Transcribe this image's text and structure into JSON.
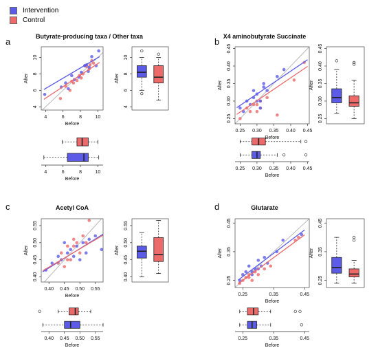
{
  "legend": {
    "items": [
      {
        "label": "Intervention",
        "color": "#5b5be8"
      },
      {
        "label": "Control",
        "color": "#ec6a6a"
      }
    ]
  },
  "colors": {
    "intervention": "#5b5be8",
    "control": "#ec6a6a",
    "identity_line": "#b8b8b8"
  },
  "chart_data": [
    {
      "panel": "a",
      "type": "scatter",
      "title": "Butyrate-producing taxa / Other taxa",
      "xlabel": "Before",
      "ylabel": "After",
      "boxplot_xlabel": "Before",
      "xlim": [
        3.5,
        10.6
      ],
      "ylim": [
        3.6,
        11.3
      ],
      "xticks": [
        "4",
        "6",
        "8",
        "10"
      ],
      "yticks": [
        "4",
        "6",
        "8",
        "10"
      ],
      "xtick_values": [
        4,
        6,
        8,
        10
      ],
      "ytick_values": [
        4,
        6,
        8,
        10
      ],
      "identity_line": true,
      "series": [
        {
          "name": "Intervention",
          "x": [
            3.9,
            5.8,
            6.6,
            7.3,
            7.8,
            8.1,
            8.5,
            8.9,
            9.3,
            9.8,
            10.1,
            8.7,
            9.0,
            6.3,
            7.0
          ],
          "y": [
            5.5,
            6.4,
            6.2,
            7.3,
            7.6,
            8.2,
            9.0,
            8.3,
            10.1,
            9.0,
            10.8,
            9.1,
            8.8,
            6.9,
            7.8
          ],
          "fit": [
            [
              3.8,
              6.1
            ],
            [
              10.2,
              10.1
            ]
          ]
        },
        {
          "name": "Control",
          "x": [
            5.7,
            6.3,
            6.8,
            7.2,
            7.6,
            7.9,
            8.3,
            8.7,
            9.0,
            9.3,
            9.5,
            8.5,
            7.0,
            8.1,
            9.1
          ],
          "y": [
            5.0,
            6.5,
            6.0,
            6.9,
            7.2,
            7.8,
            8.0,
            8.9,
            8.6,
            9.6,
            9.3,
            9.0,
            7.1,
            7.5,
            9.1
          ],
          "fit": [
            [
              3.8,
              4.9
            ],
            [
              10.2,
              9.4
            ]
          ]
        }
      ],
      "boxplot_after": {
        "ylim": [
          3.6,
          11.3
        ],
        "yticks": [
          "4",
          "6",
          "8",
          "10"
        ],
        "ytick_values": [
          4,
          6,
          8,
          10
        ],
        "Intervention": {
          "wlo": 6.0,
          "q1": 7.6,
          "median": 8.2,
          "q3": 9.0,
          "whi": 10.0,
          "out": [
            5.6,
            10.8
          ]
        },
        "Control": {
          "wlo": 4.8,
          "q1": 6.9,
          "median": 7.6,
          "q3": 9.0,
          "whi": 10.0,
          "out": [
            10.4
          ]
        }
      },
      "boxplot_before": {
        "Control": {
          "wlo": 5.9,
          "q1": 7.6,
          "median": 8.2,
          "q3": 8.9,
          "whi": 10.0,
          "out": []
        },
        "Intervention": {
          "wlo": 3.8,
          "q1": 6.5,
          "median": 8.4,
          "q3": 8.9,
          "whi": 10.1,
          "out": []
        }
      }
    },
    {
      "panel": "b",
      "type": "scatter",
      "title": "X4 aminobutyrate Succinate",
      "xlabel": "Before",
      "ylabel": "After",
      "boxplot_xlabel": "Before",
      "xlim": [
        0.235,
        0.455
      ],
      "ylim": [
        0.235,
        0.455
      ],
      "xticks": [
        "0.25",
        "0.30",
        "0.35",
        "0.40",
        "0.45"
      ],
      "yticks": [
        "0.25",
        "0.30",
        "0.35",
        "0.40",
        "0.45"
      ],
      "xtick_values": [
        0.25,
        0.3,
        0.35,
        0.4,
        0.45
      ],
      "ytick_values": [
        0.25,
        0.3,
        0.35,
        0.4,
        0.45
      ],
      "identity_line": true,
      "series": [
        {
          "name": "Intervention",
          "x": [
            0.25,
            0.26,
            0.27,
            0.28,
            0.29,
            0.3,
            0.31,
            0.32,
            0.33,
            0.36,
            0.38,
            0.3,
            0.31,
            0.29,
            0.32
          ],
          "y": [
            0.28,
            0.27,
            0.3,
            0.29,
            0.31,
            0.32,
            0.3,
            0.35,
            0.33,
            0.37,
            0.39,
            0.3,
            0.28,
            0.33,
            0.34
          ],
          "fit": [
            [
              0.24,
              0.281
            ],
            [
              0.45,
              0.418
            ]
          ]
        },
        {
          "name": "Control",
          "x": [
            0.25,
            0.27,
            0.28,
            0.29,
            0.3,
            0.31,
            0.33,
            0.36,
            0.41,
            0.44,
            0.3,
            0.31
          ],
          "y": [
            0.25,
            0.28,
            0.27,
            0.29,
            0.29,
            0.3,
            0.31,
            0.26,
            0.36,
            0.41,
            0.27,
            0.28
          ],
          "fit": [
            [
              0.24,
              0.262
            ],
            [
              0.45,
              0.399
            ]
          ]
        }
      ],
      "boxplot_after": {
        "ylim": [
          0.235,
          0.455
        ],
        "yticks": [
          "0.25",
          "0.30",
          "0.35",
          "0.40",
          "0.45"
        ],
        "ytick_values": [
          0.25,
          0.3,
          0.35,
          0.4,
          0.45
        ],
        "Intervention": {
          "wlo": 0.265,
          "q1": 0.295,
          "median": 0.31,
          "q3": 0.335,
          "whi": 0.39,
          "out": [
            0.415
          ]
        },
        "Control": {
          "wlo": 0.25,
          "q1": 0.285,
          "median": 0.295,
          "q3": 0.315,
          "whi": 0.36,
          "out": [
            0.405,
            0.41
          ]
        }
      },
      "boxplot_before": {
        "Control": {
          "wlo": 0.25,
          "q1": 0.285,
          "median": 0.305,
          "q3": 0.325,
          "whi": 0.43,
          "out": [
            0.445
          ]
        },
        "Intervention": {
          "wlo": 0.25,
          "q1": 0.285,
          "median": 0.3,
          "q3": 0.31,
          "whi": 0.36,
          "out": [
            0.38,
            0.445
          ]
        }
      }
    },
    {
      "panel": "c",
      "type": "scatter",
      "title": "Acetyl CoA",
      "xlabel": "Before",
      "ylabel": "After",
      "boxplot_xlabel": "Before",
      "xlim": [
        0.375,
        0.575
      ],
      "ylim": [
        0.385,
        0.57
      ],
      "xticks": [
        "0.40",
        "0.45",
        "0.50",
        "0.55"
      ],
      "yticks": [
        "0.40",
        "0.45",
        "0.50",
        "0.55"
      ],
      "xtick_values": [
        0.4,
        0.45,
        0.5,
        0.55
      ],
      "ytick_values": [
        0.4,
        0.45,
        0.5,
        0.55
      ],
      "identity_line": true,
      "series": [
        {
          "name": "Intervention",
          "x": [
            0.39,
            0.41,
            0.43,
            0.44,
            0.45,
            0.46,
            0.47,
            0.48,
            0.49,
            0.5,
            0.51,
            0.52,
            0.53,
            0.55,
            0.57
          ],
          "y": [
            0.42,
            0.44,
            0.46,
            0.45,
            0.5,
            0.47,
            0.48,
            0.46,
            0.49,
            0.45,
            0.5,
            0.47,
            0.51,
            0.52,
            0.48
          ],
          "fit": [
            [
              0.38,
              0.415
            ],
            [
              0.575,
              0.525
            ]
          ]
        },
        {
          "name": "Control",
          "x": [
            0.43,
            0.44,
            0.45,
            0.46,
            0.47,
            0.48,
            0.49,
            0.5,
            0.51,
            0.52,
            0.53,
            0.46,
            0.48
          ],
          "y": [
            0.44,
            0.47,
            0.43,
            0.49,
            0.45,
            0.51,
            0.5,
            0.47,
            0.52,
            0.5,
            0.565,
            0.45,
            0.49
          ],
          "fit": [
            [
              0.38,
              0.418
            ],
            [
              0.575,
              0.522
            ]
          ]
        }
      ],
      "boxplot_after": {
        "ylim": [
          0.385,
          0.57
        ],
        "yticks": [
          "0.40",
          "0.45",
          "0.50",
          "0.55"
        ],
        "ytick_values": [
          0.4,
          0.45,
          0.5,
          0.55
        ],
        "Intervention": {
          "wlo": 0.4,
          "q1": 0.455,
          "median": 0.475,
          "q3": 0.49,
          "whi": 0.53,
          "out": []
        },
        "Control": {
          "wlo": 0.41,
          "q1": 0.445,
          "median": 0.465,
          "q3": 0.515,
          "whi": 0.565,
          "out": []
        }
      },
      "boxplot_before": {
        "Control": {
          "wlo": 0.43,
          "q1": 0.465,
          "median": 0.485,
          "q3": 0.495,
          "whi": 0.535,
          "out": [
            0.37
          ]
        },
        "Intervention": {
          "wlo": 0.38,
          "q1": 0.45,
          "median": 0.47,
          "q3": 0.5,
          "whi": 0.575,
          "out": []
        }
      }
    },
    {
      "panel": "d",
      "type": "scatter",
      "title": "Glutarate",
      "xlabel": "Before",
      "ylabel": "After",
      "boxplot_xlabel": "Before",
      "xlim": [
        0.225,
        0.465
      ],
      "ylim": [
        0.225,
        0.465
      ],
      "xticks": [
        "0.25",
        "0.35",
        "0.45"
      ],
      "yticks": [
        "0.25",
        "0.35",
        "0.45"
      ],
      "xtick_values": [
        0.25,
        0.35,
        0.45
      ],
      "ytick_values": [
        0.25,
        0.35,
        0.45
      ],
      "identity_line": true,
      "series": [
        {
          "name": "Intervention",
          "x": [
            0.24,
            0.25,
            0.26,
            0.27,
            0.28,
            0.29,
            0.3,
            0.31,
            0.32,
            0.33,
            0.36,
            0.38,
            0.44,
            0.28,
            0.3
          ],
          "y": [
            0.25,
            0.27,
            0.28,
            0.3,
            0.27,
            0.29,
            0.32,
            0.3,
            0.33,
            0.31,
            0.35,
            0.39,
            0.41,
            0.28,
            0.29
          ],
          "fit": [
            [
              0.235,
              0.251
            ],
            [
              0.45,
              0.426
            ]
          ]
        },
        {
          "name": "Control",
          "x": [
            0.24,
            0.25,
            0.26,
            0.27,
            0.28,
            0.29,
            0.3,
            0.32,
            0.34,
            0.42,
            0.43,
            0.27
          ],
          "y": [
            0.24,
            0.25,
            0.26,
            0.27,
            0.25,
            0.28,
            0.27,
            0.29,
            0.3,
            0.39,
            0.4,
            0.26
          ],
          "fit": [
            [
              0.235,
              0.238
            ],
            [
              0.45,
              0.409
            ]
          ]
        }
      ],
      "boxplot_after": {
        "ylim": [
          0.225,
          0.465
        ],
        "yticks": [
          "0.25",
          "0.35",
          "0.45"
        ],
        "ytick_values": [
          0.25,
          0.35,
          0.45
        ],
        "Intervention": {
          "wlo": 0.24,
          "q1": 0.275,
          "median": 0.295,
          "q3": 0.33,
          "whi": 0.4,
          "out": []
        },
        "Control": {
          "wlo": 0.24,
          "q1": 0.262,
          "median": 0.272,
          "q3": 0.29,
          "whi": 0.32,
          "out": [
            0.39,
            0.4
          ]
        }
      },
      "boxplot_before": {
        "Control": {
          "wlo": 0.24,
          "q1": 0.265,
          "median": 0.285,
          "q3": 0.3,
          "whi": 0.34,
          "out": [
            0.42,
            0.435
          ]
        },
        "Intervention": {
          "wlo": 0.24,
          "q1": 0.265,
          "median": 0.28,
          "q3": 0.295,
          "whi": 0.34,
          "out": [
            0.44
          ]
        }
      }
    }
  ]
}
